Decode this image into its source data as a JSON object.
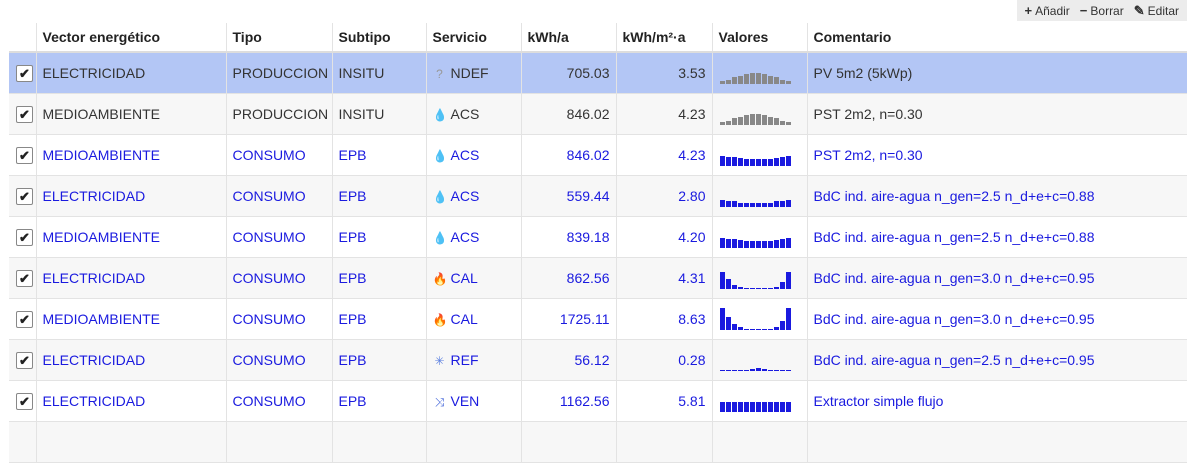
{
  "toolbar": {
    "add_label": "Añadir",
    "delete_label": "Borrar",
    "edit_label": "Editar"
  },
  "columns": [
    "Vector energético",
    "Tipo",
    "Subtipo",
    "Servicio",
    "kWh/a",
    "kWh/m²·a",
    "Valores",
    "Comentario"
  ],
  "colors": {
    "consumo_text": "#1a1adf",
    "produccion_text": "#333333",
    "selected_row": "#b3c6f5",
    "acs_icon": "#4a6fd8",
    "cal_icon": "#f0643c",
    "ref_icon": "#5a7fe0",
    "ven_icon": "#3b5fd8",
    "ndef_icon": "#999999"
  },
  "rows": [
    {
      "checked": true,
      "vector": "ELECTRICIDAD",
      "tipo": "PRODUCCION",
      "subtipo": "INSITU",
      "servicio": "NDEF",
      "icon": "question-icon",
      "kwh": "705.03",
      "kwhm2": "3.53",
      "comment": "PV 5m2 (5kWp)",
      "spark": "flat-gray",
      "selected": true
    },
    {
      "checked": true,
      "vector": "MEDIOAMBIENTE",
      "tipo": "PRODUCCION",
      "subtipo": "INSITU",
      "servicio": "ACS",
      "icon": "water-drop-icon",
      "kwh": "846.02",
      "kwhm2": "4.23",
      "comment": "PST 2m2, n=0.30",
      "spark": "flat-gray",
      "selected": false
    },
    {
      "checked": true,
      "vector": "MEDIOAMBIENTE",
      "tipo": "CONSUMO",
      "subtipo": "EPB",
      "servicio": "ACS",
      "icon": "water-drop-icon",
      "kwh": "846.02",
      "kwhm2": "4.23",
      "comment": "PST 2m2, n=0.30",
      "spark": "flat-blue-mid",
      "selected": false
    },
    {
      "checked": true,
      "vector": "ELECTRICIDAD",
      "tipo": "CONSUMO",
      "subtipo": "EPB",
      "servicio": "ACS",
      "icon": "water-drop-icon",
      "kwh": "559.44",
      "kwhm2": "2.80",
      "comment": "BdC ind. aire-agua n_gen=2.5 n_d+e+c=0.88",
      "spark": "flat-blue-low",
      "selected": false
    },
    {
      "checked": true,
      "vector": "MEDIOAMBIENTE",
      "tipo": "CONSUMO",
      "subtipo": "EPB",
      "servicio": "ACS",
      "icon": "water-drop-icon",
      "kwh": "839.18",
      "kwhm2": "4.20",
      "comment": "BdC ind. aire-agua n_gen=2.5 n_d+e+c=0.88",
      "spark": "flat-blue-mid2",
      "selected": false
    },
    {
      "checked": true,
      "vector": "ELECTRICIDAD",
      "tipo": "CONSUMO",
      "subtipo": "EPB",
      "servicio": "CAL",
      "icon": "fire-icon",
      "kwh": "862.56",
      "kwhm2": "4.31",
      "comment": "BdC ind. aire-agua n_gen=3.0 n_d+e+c=0.95",
      "spark": "heat-low",
      "selected": false
    },
    {
      "checked": true,
      "vector": "MEDIOAMBIENTE",
      "tipo": "CONSUMO",
      "subtipo": "EPB",
      "servicio": "CAL",
      "icon": "fire-icon",
      "kwh": "1725.11",
      "kwhm2": "8.63",
      "comment": "BdC ind. aire-agua n_gen=3.0 n_d+e+c=0.95",
      "spark": "heat-high",
      "selected": false
    },
    {
      "checked": true,
      "vector": "ELECTRICIDAD",
      "tipo": "CONSUMO",
      "subtipo": "EPB",
      "servicio": "REF",
      "icon": "snowflake-icon",
      "kwh": "56.12",
      "kwhm2": "0.28",
      "comment": "BdC ind. aire-agua n_gen=2.5 n_d+e+c=0.95",
      "spark": "summer",
      "selected": false
    },
    {
      "checked": true,
      "vector": "ELECTRICIDAD",
      "tipo": "CONSUMO",
      "subtipo": "EPB",
      "servicio": "VEN",
      "icon": "shuffle-icon",
      "kwh": "1162.56",
      "kwhm2": "5.81",
      "comment": "Extractor simple flujo",
      "spark": "flat-blue-high",
      "selected": false
    }
  ]
}
